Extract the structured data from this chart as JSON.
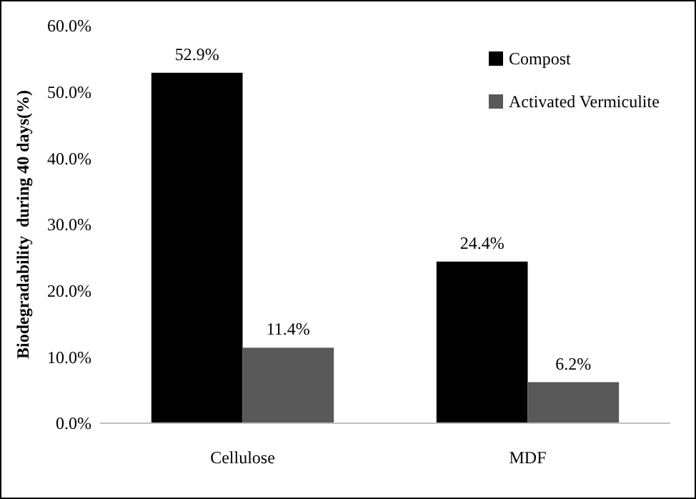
{
  "chart_data": {
    "type": "bar",
    "ylabel": "Biodegradability  during 40 days(%)",
    "categories": [
      "Cellulose",
      "MDF"
    ],
    "series": [
      {
        "name": "Compost",
        "color": "#000000",
        "values": [
          52.9,
          24.4
        ],
        "value_labels": [
          "52.9%",
          "24.4%"
        ]
      },
      {
        "name": "Activated Vermiculite",
        "color": "#595959",
        "values": [
          11.4,
          6.2
        ],
        "value_labels": [
          "11.4%",
          "6.2%"
        ]
      }
    ],
    "ylim": [
      0,
      60
    ],
    "yticks": [
      {
        "value": 0,
        "label": "0.0%"
      },
      {
        "value": 10,
        "label": "10.0%"
      },
      {
        "value": 20,
        "label": "20.0%"
      },
      {
        "value": 30,
        "label": "30.0%"
      },
      {
        "value": 40,
        "label": "40.0%"
      },
      {
        "value": 50,
        "label": "50.0%"
      },
      {
        "value": 60,
        "label": "60.0%"
      }
    ],
    "grid": false,
    "legend": "top right"
  }
}
